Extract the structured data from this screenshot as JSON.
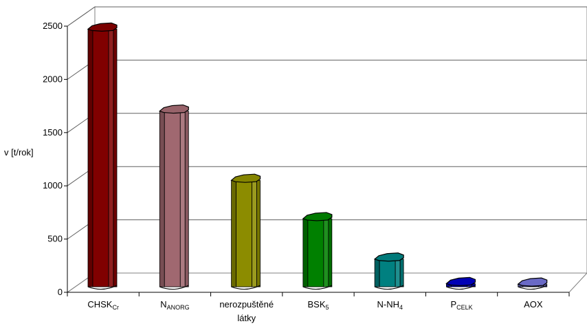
{
  "chart_data": {
    "type": "bar",
    "ylabel": "v [t/rok]",
    "ylim": [
      0,
      2500
    ],
    "yticks": [
      0,
      500,
      1000,
      1500,
      2000,
      2500
    ],
    "grid": true,
    "categories": [
      {
        "main": "CHSK",
        "sub": "Cr",
        "line2": ""
      },
      {
        "main": "N",
        "sub": "ANORG",
        "line2": ""
      },
      {
        "main": "nerozpuštěné",
        "sub": "",
        "line2": "látky"
      },
      {
        "main": "BSK",
        "sub": "5",
        "line2": ""
      },
      {
        "main": "N-NH",
        "sub": "4",
        "line2": ""
      },
      {
        "main": "P",
        "sub": "CELK",
        "line2": ""
      },
      {
        "main": "AOX",
        "sub": "",
        "line2": ""
      }
    ],
    "values": [
      2420,
      1650,
      1000,
      640,
      260,
      30,
      25
    ],
    "colors": [
      "#800000",
      "#A06870",
      "#8C8C00",
      "#008000",
      "#008080",
      "#0000C0",
      "#7070D0"
    ]
  }
}
